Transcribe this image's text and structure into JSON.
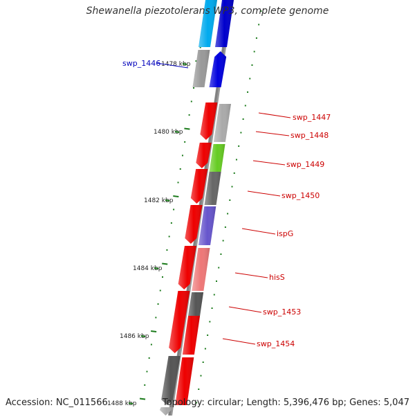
{
  "title": "Shewanella piezotolerans WP3, complete genome",
  "footer": {
    "accession": "Accession: NC_011566",
    "summary": "Topology: circular; Length: 5,396,476 bp; Genes: 5,047"
  },
  "colors": {
    "backbone": "#808080",
    "tick": "#1a7a1a",
    "forward_label": "#cc0000",
    "reverse_label": "#0000bb"
  },
  "kbp_ticks": [
    "1478 kbp",
    "1480 kbp",
    "1482 kbp",
    "1484 kbp",
    "1486 kbp",
    "1488 kbp"
  ],
  "gene_labels": [
    {
      "text": "swp_1446",
      "strand": "reverse"
    },
    {
      "text": "swp_1447",
      "strand": "forward"
    },
    {
      "text": "swp_1448",
      "strand": "forward"
    },
    {
      "text": "swp_1449",
      "strand": "forward"
    },
    {
      "text": "swp_1450",
      "strand": "forward"
    },
    {
      "text": "ispG",
      "strand": "forward"
    },
    {
      "text": "hisS",
      "strand": "forward"
    },
    {
      "text": "swp_1453",
      "strand": "forward"
    },
    {
      "text": "swp_1454",
      "strand": "forward"
    }
  ],
  "genes": [
    {
      "strand": "reverse",
      "color": "#00aaee"
    },
    {
      "strand": "reverse",
      "color": "#0000cc"
    },
    {
      "strand": "reverse",
      "color": "#999999"
    },
    {
      "strand": "reverse",
      "color": "#0000dd"
    },
    {
      "strand": "forward",
      "color": "#ee0000"
    },
    {
      "strand": "forward",
      "color": "#aaaaaa"
    },
    {
      "strand": "forward",
      "color": "#ee0000"
    },
    {
      "strand": "forward",
      "color": "#66cc22"
    },
    {
      "strand": "forward",
      "color": "#ee0000"
    },
    {
      "strand": "forward",
      "color": "#666666"
    },
    {
      "strand": "forward",
      "color": "#ee0000"
    },
    {
      "strand": "forward",
      "color": "#6655cc"
    },
    {
      "strand": "forward",
      "color": "#ee0000"
    },
    {
      "strand": "forward",
      "color": "#ee7777"
    },
    {
      "strand": "forward",
      "color": "#ee0000"
    },
    {
      "strand": "forward",
      "color": "#555555"
    },
    {
      "strand": "forward",
      "color": "#ee0000"
    },
    {
      "strand": "forward",
      "color": "#555555"
    },
    {
      "strand": "forward",
      "color": "#ee0000"
    },
    {
      "strand": "forward",
      "color": "#aaaaaa"
    }
  ]
}
